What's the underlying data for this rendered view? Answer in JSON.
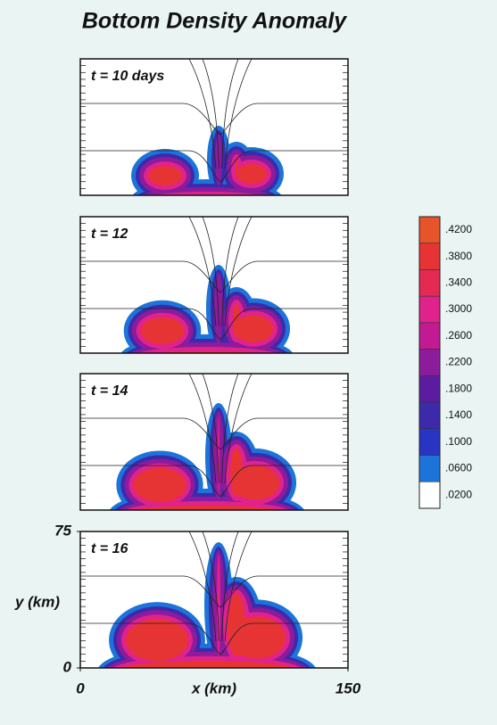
{
  "chart_data": {
    "type": "contour",
    "title": "Bottom Density Anomaly",
    "panels": [
      {
        "label": "t = 10 days"
      },
      {
        "label": "t = 12"
      },
      {
        "label": "t = 14"
      },
      {
        "label": "t = 16"
      }
    ],
    "xlabel": "x (km)",
    "ylabel": "y (km)",
    "xlim": [
      0,
      150
    ],
    "ylim": [
      0,
      75
    ],
    "xticks": [
      0,
      150
    ],
    "yticks": [
      0,
      75
    ],
    "colorbar": {
      "ticks": [
        {
          "value": 0.42,
          "label": ".4200"
        },
        {
          "value": 0.38,
          "label": ".3800"
        },
        {
          "value": 0.34,
          "label": ".3400"
        },
        {
          "value": 0.3,
          "label": ".3000"
        },
        {
          "value": 0.26,
          "label": ".2600"
        },
        {
          "value": 0.22,
          "label": ".2200"
        },
        {
          "value": 0.18,
          "label": ".1800"
        },
        {
          "value": 0.14,
          "label": ".1400"
        },
        {
          "value": 0.1,
          "label": ".1000"
        },
        {
          "value": 0.06,
          "label": ".0600"
        },
        {
          "value": 0.02,
          "label": ".0200"
        }
      ],
      "colors": [
        "#e8542a",
        "#e63434",
        "#e42a52",
        "#e0228c",
        "#c21a92",
        "#8c1c9c",
        "#5c1ca2",
        "#3c2aaa",
        "#2a34c2",
        "#1c74da",
        "#ffffff"
      ]
    }
  }
}
